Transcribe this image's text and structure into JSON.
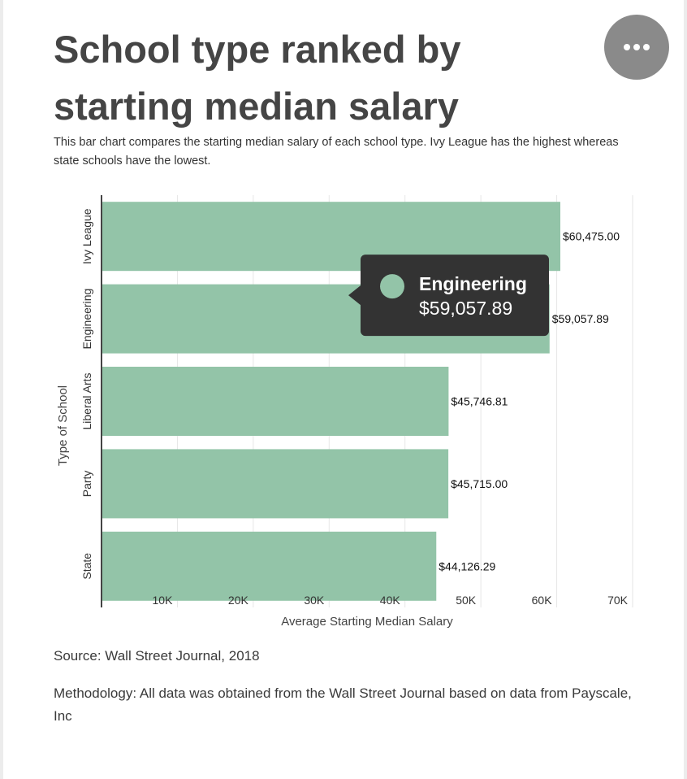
{
  "header": {
    "title": "School type ranked by starting median salary",
    "subtitle": "This bar chart compares the starting median salary of each school type. Ivy League has the highest whereas state schools have the lowest.",
    "menu_icon": "more-horizontal-icon"
  },
  "colors": {
    "bar": "#93c4a8",
    "axis": "#444444",
    "grid": "#e6e6e6",
    "tooltip_bg": "#333333",
    "tooltip_text": "#ffffff"
  },
  "chart_data": {
    "type": "bar",
    "orientation": "horizontal",
    "categories": [
      "Ivy League",
      "Engineering",
      "Liberal Arts",
      "Party",
      "State"
    ],
    "values": [
      60475.0,
      59057.89,
      45746.81,
      45715.0,
      44126.29
    ],
    "value_labels": [
      "$60,475.00",
      "$59,057.89",
      "$45,746.81",
      "$45,715.00",
      "$44,126.29"
    ],
    "xlabel": "Average Starting Median Salary",
    "ylabel": "Type of School",
    "xlim": [
      0,
      70000
    ],
    "x_ticks": [
      10000,
      20000,
      30000,
      40000,
      50000,
      60000,
      70000
    ],
    "x_tick_labels": [
      "10K",
      "20K",
      "30K",
      "40K",
      "50K",
      "60K",
      "70K"
    ],
    "grid": true,
    "tooltip": {
      "category": "Engineering",
      "value_text": "$59,057.89"
    }
  },
  "footer": {
    "source": "Source:  Wall Street Journal, 2018",
    "methodology": "Methodology: All data was obtained from the Wall Street Journal based on data from Payscale, Inc"
  }
}
